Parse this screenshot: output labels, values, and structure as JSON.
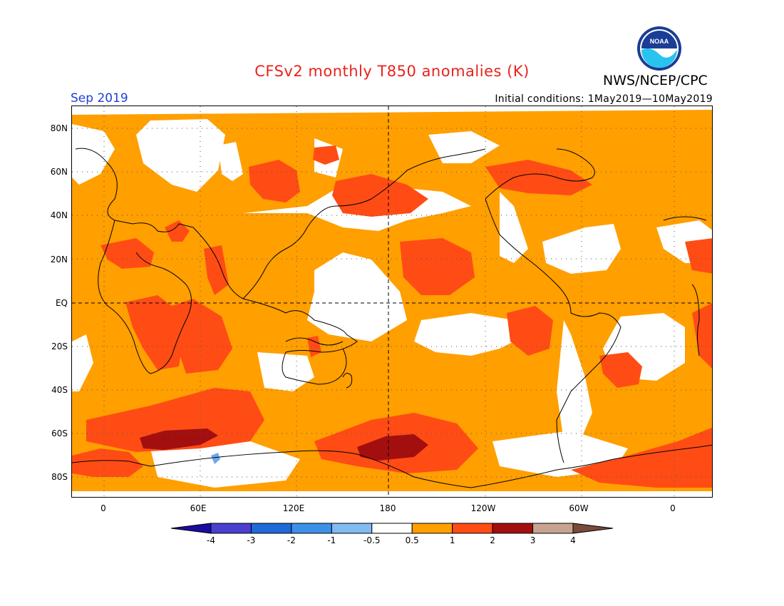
{
  "header": {
    "title": "CFSv2 monthly T850 anomalies (K)",
    "agency": "NWS/NCEP/CPC",
    "period": "Sep 2019",
    "initial_conditions": "Initial conditions: 1May2019—10May2019",
    "logo_icon": "noaa-logo-icon"
  },
  "map": {
    "lat_labels": [
      "80N",
      "60N",
      "40N",
      "20N",
      "EQ",
      "20S",
      "40S",
      "60S",
      "80S"
    ],
    "lon_labels": [
      "0",
      "60E",
      "120E",
      "180",
      "120W",
      "60W",
      "0"
    ]
  },
  "legend": {
    "labels": [
      "-4",
      "-3",
      "-2",
      "-1",
      "-0.5",
      "0.5",
      "1",
      "2",
      "3",
      "4"
    ],
    "colors": [
      "#1a0ca0",
      "#4a3fd0",
      "#1f6ad8",
      "#3d90e8",
      "#82baf2",
      "#ffffff",
      "#ff9f00",
      "#ff4c15",
      "#a30f0f",
      "#c8a490",
      "#7a4a3a"
    ]
  }
}
